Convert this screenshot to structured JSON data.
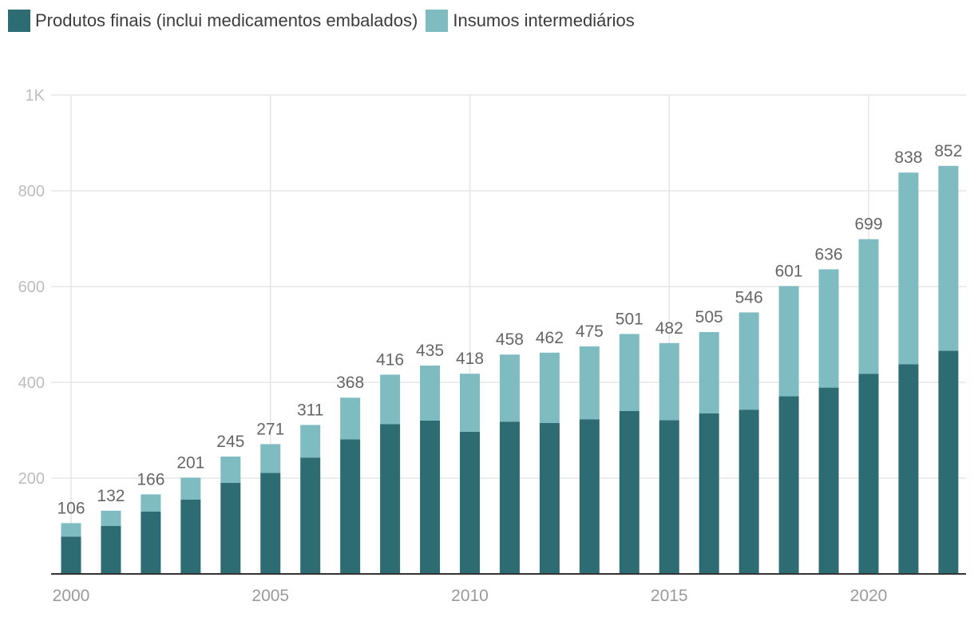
{
  "chart_data": {
    "type": "bar",
    "stacked": true,
    "title": "",
    "xlabel": "",
    "ylabel": "",
    "ylim": [
      0,
      1000
    ],
    "y_ticks": [
      {
        "value": 200,
        "label": "200"
      },
      {
        "value": 400,
        "label": "400"
      },
      {
        "value": 600,
        "label": "600"
      },
      {
        "value": 800,
        "label": "800"
      },
      {
        "value": 1000,
        "label": "1K"
      }
    ],
    "x_ticks": [
      {
        "value": 2000,
        "label": "2000"
      },
      {
        "value": 2005,
        "label": "2005"
      },
      {
        "value": 2010,
        "label": "2010"
      },
      {
        "value": 2015,
        "label": "2015"
      },
      {
        "value": 2020,
        "label": "2020"
      }
    ],
    "categories": [
      2000,
      2001,
      2002,
      2003,
      2004,
      2005,
      2006,
      2007,
      2008,
      2009,
      2010,
      2011,
      2012,
      2013,
      2014,
      2015,
      2016,
      2017,
      2018,
      2019,
      2020,
      2021,
      2022
    ],
    "series": [
      {
        "name": "Produtos finais (inclui medicamentos embalados)",
        "color": "#2e6c74",
        "values": [
          78,
          100,
          130,
          155,
          190,
          211,
          243,
          281,
          313,
          320,
          297,
          318,
          315,
          323,
          340,
          321,
          335,
          343,
          371,
          389,
          418,
          438,
          466
        ]
      },
      {
        "name": "Insumos intermediários",
        "color": "#7fbcc2",
        "values": [
          28,
          32,
          36,
          46,
          55,
          60,
          68,
          87,
          103,
          115,
          121,
          140,
          147,
          152,
          161,
          161,
          170,
          203,
          230,
          247,
          281,
          400,
          386
        ]
      }
    ],
    "totals": [
      106,
      132,
      166,
      201,
      245,
      271,
      311,
      368,
      416,
      435,
      418,
      458,
      462,
      475,
      501,
      482,
      505,
      546,
      601,
      636,
      699,
      838,
      852
    ],
    "legend_position": "top-left",
    "grid": true
  }
}
